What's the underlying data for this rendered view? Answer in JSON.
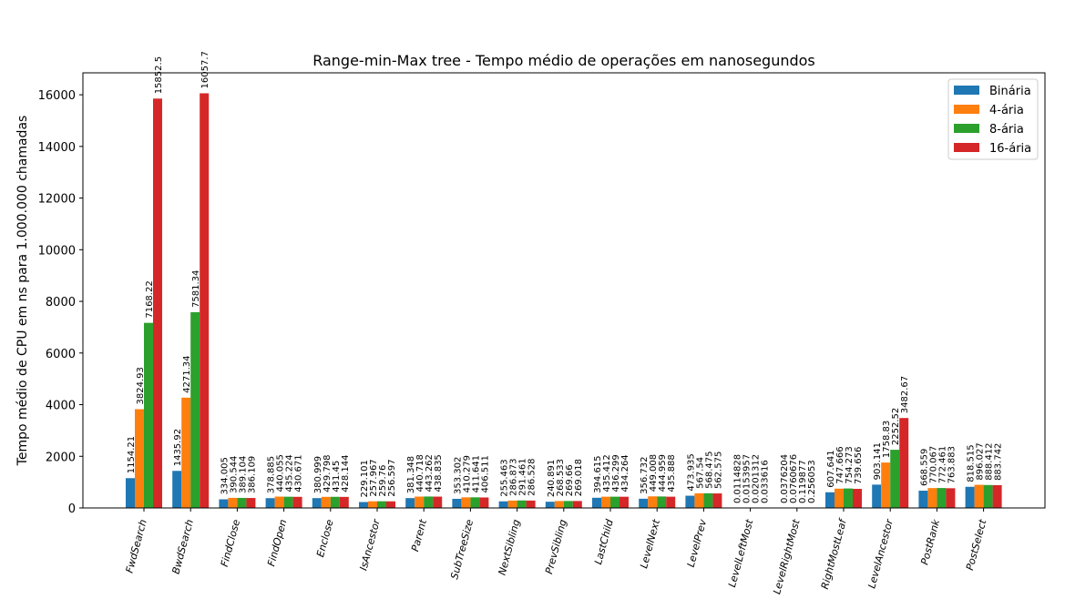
{
  "chart_data": {
    "type": "bar",
    "title": "Range-min-Max tree - Tempo médio de operações em nanosegundos",
    "xlabel": "",
    "ylabel": "Tempo médio de CPU em ns para 1.000.000 chamadas",
    "ylim": [
      0,
      16850
    ],
    "yticks": [
      0,
      2000,
      4000,
      6000,
      8000,
      10000,
      12000,
      14000,
      16000
    ],
    "grid": false,
    "legend_position": "top-right",
    "categories": [
      "FwdSearch",
      "BwdSearch",
      "FindClose",
      "FindOpen",
      "Enclose",
      "IsAncestor",
      "Parent",
      "SubTreeSize",
      "NextSibling",
      "PrevSibling",
      "LastChild",
      "LevelNext",
      "LevelPrev",
      "LevelLeftMost",
      "LevelRightMost",
      "RightMostLeaf",
      "LevelAncestor",
      "PostRank",
      "PostSelect"
    ],
    "series": [
      {
        "name": "Binária",
        "color": "#1f77b4",
        "values": [
          1154.21,
          1435.92,
          334.005,
          378.885,
          380.999,
          229.101,
          381.348,
          353.302,
          255.463,
          240.891,
          394.615,
          356.732,
          473.935,
          0.0114828,
          0.0376204,
          607.641,
          903.141,
          668.559,
          818.515
        ],
        "labels": [
          "1154.21",
          "1435.92",
          "334.005",
          "378.885",
          "380.999",
          "229.101",
          "381.348",
          "353.302",
          "255.463",
          "240.891",
          "394.615",
          "356.732",
          "473.935",
          "0.0114828",
          "0.0376204",
          "607.641",
          "903.141",
          "668.559",
          "818.515"
        ]
      },
      {
        "name": "4-ária",
        "color": "#ff7f0e",
        "values": [
          3824.93,
          4271.34,
          390.544,
          440.055,
          429.798,
          257.967,
          440.718,
          410.279,
          286.873,
          268.533,
          435.412,
          449.008,
          567.54,
          0.0153957,
          0.0760676,
          747.666,
          1758.83,
          770.067,
          896.027
        ],
        "labels": [
          "3824.93",
          "4271.34",
          "390.544",
          "440.055",
          "429.798",
          "257.967",
          "440.718",
          "410.279",
          "286.873",
          "268.533",
          "435.412",
          "449.008",
          "567.54",
          "0.0153957",
          "0.0760676",
          "747.666",
          "1758.83",
          "770.067",
          "896.027"
        ]
      },
      {
        "name": "8-ária",
        "color": "#2ca02c",
        "values": [
          7168.22,
          7581.34,
          389.104,
          435.224,
          431.45,
          259.76,
          443.262,
          411.641,
          291.461,
          269.66,
          436.299,
          444.959,
          568.475,
          0.0201312,
          0.119877,
          754.273,
          2252.52,
          772.461,
          888.412
        ],
        "labels": [
          "7168.22",
          "7581.34",
          "389.104",
          "435.224",
          "431.45",
          "259.76",
          "443.262",
          "411.641",
          "291.461",
          "269.66",
          "436.299",
          "444.959",
          "568.475",
          "0.0201312",
          "0.119877",
          "754.273",
          "2252.52",
          "772.461",
          "888.412"
        ]
      },
      {
        "name": "16-ária",
        "color": "#d62728",
        "values": [
          15852.5,
          16057.7,
          386.109,
          430.671,
          428.144,
          256.597,
          438.835,
          406.511,
          286.528,
          269.018,
          434.264,
          435.888,
          562.575,
          0.033616,
          0.256053,
          739.656,
          3482.67,
          763.883,
          883.742
        ],
        "labels": [
          "15852.5",
          "16057.7",
          "386.109",
          "430.671",
          "428.144",
          "256.597",
          "438.835",
          "406.511",
          "286.528",
          "269.018",
          "434.264",
          "435.888",
          "562.575",
          "0.033616",
          "0.256053",
          "739.656",
          "3482.67",
          "763.883",
          "883.742"
        ]
      }
    ]
  }
}
